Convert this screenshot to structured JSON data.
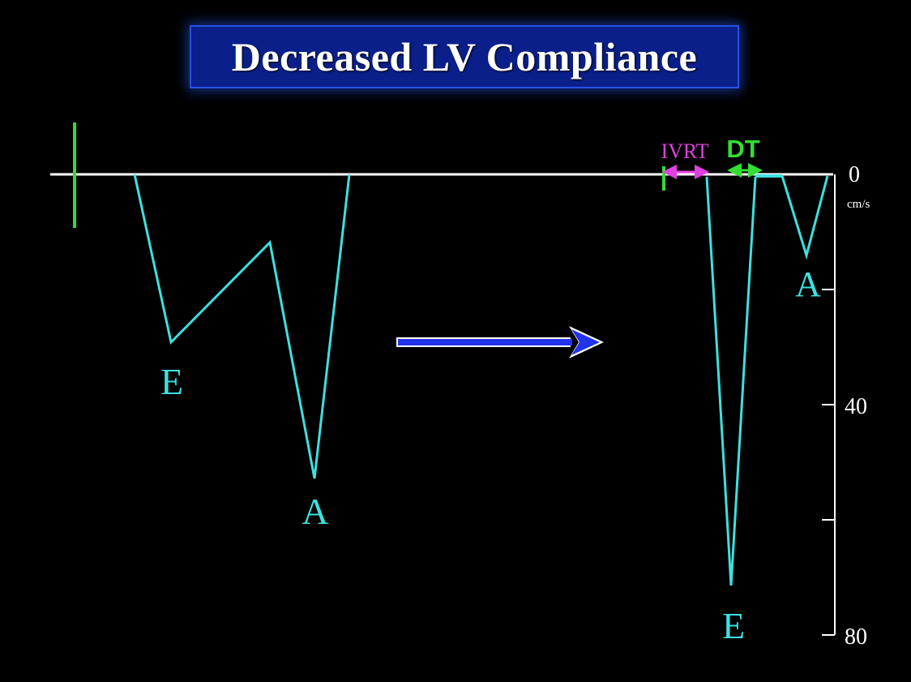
{
  "title": "Decreased LV Compliance",
  "colors": {
    "background": "#000000",
    "title_bg": "#0a1f8a",
    "title_text": "#ffffff",
    "baseline": "#ffffff",
    "waveform": "#3de0e0",
    "marker": "#33dd33",
    "ivrt": "#e040e0",
    "dt": "#33dd33",
    "arrow": "#2233ee",
    "axis": "#ffffff"
  },
  "left_panel": {
    "e_label": "E",
    "a_label": "A"
  },
  "right_panel": {
    "ivrt_label": "IVRT",
    "dt_label": "DT",
    "e_label": "E",
    "a_label": "A"
  },
  "axis": {
    "unit": "cm/s",
    "ticks": [
      {
        "value": 0,
        "label": "0"
      },
      {
        "value": 20,
        "label": ""
      },
      {
        "value": 40,
        "label": "40"
      },
      {
        "value": 60,
        "label": ""
      },
      {
        "value": 80,
        "label": "80"
      }
    ]
  },
  "arrow_icon": "right-arrow-icon"
}
